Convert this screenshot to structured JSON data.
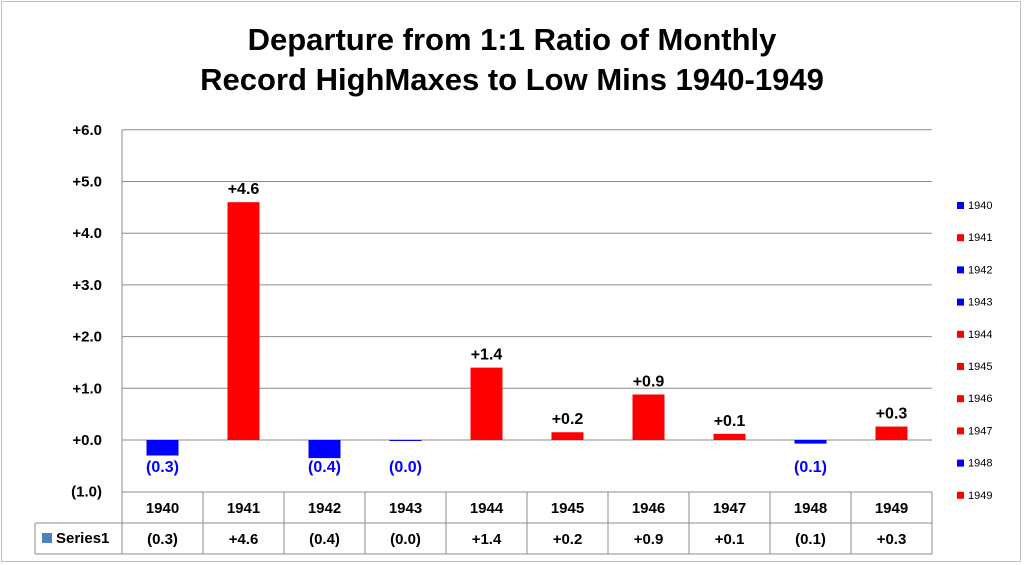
{
  "chart_data": {
    "type": "bar",
    "title": "Departure from 1:1 Ratio of Monthly Record HighMaxes to Low Mins 1940-1949",
    "title_lines": [
      "Departure from 1:1 Ratio of Monthly",
      "Record HighMaxes to Low Mins 1940-1949"
    ],
    "categories": [
      "1940",
      "1941",
      "1942",
      "1943",
      "1944",
      "1945",
      "1946",
      "1947",
      "1948",
      "1949"
    ],
    "series": [
      {
        "name": "Series1",
        "values": [
          -0.3,
          4.6,
          -0.35,
          -0.01,
          1.4,
          0.15,
          0.88,
          0.12,
          -0.07,
          0.26
        ],
        "labels": [
          "(0.3)",
          "+4.6",
          "(0.4)",
          "(0.0)",
          "+1.4",
          "+0.2",
          "+0.9",
          "+0.1",
          "(0.1)",
          "+0.3"
        ]
      }
    ],
    "y_ticks": [
      6,
      5,
      4,
      3,
      2,
      1,
      0,
      -1
    ],
    "y_tick_labels": [
      "+6.0",
      "+5.0",
      "+4.0",
      "+3.0",
      "+2.0",
      "+1.0",
      "+0.0",
      "(1.0)"
    ],
    "ylim": [
      -1,
      6
    ],
    "grid": true,
    "colors": {
      "positive": "#ff0000",
      "negative": "#0000ff",
      "neg_label": "#0000ff",
      "series_key": "#4f81bd"
    },
    "legend": {
      "position": "right",
      "entries": [
        "1940",
        "1941",
        "1942",
        "1943",
        "1944",
        "1945",
        "1946",
        "1947",
        "1948",
        "1949"
      ]
    },
    "data_table": {
      "row_label": "Series1",
      "values": [
        "(0.3)",
        "+4.6",
        "(0.4)",
        "(0.0)",
        "+1.4",
        "+0.2",
        "+0.9",
        "+0.1",
        "(0.1)",
        "+0.3"
      ]
    },
    "xlabel": "",
    "ylabel": ""
  }
}
